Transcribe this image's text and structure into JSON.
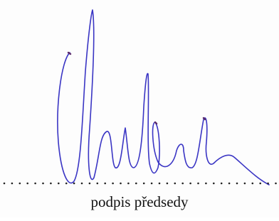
{
  "signature": {
    "label": "podpis předsedy"
  }
}
